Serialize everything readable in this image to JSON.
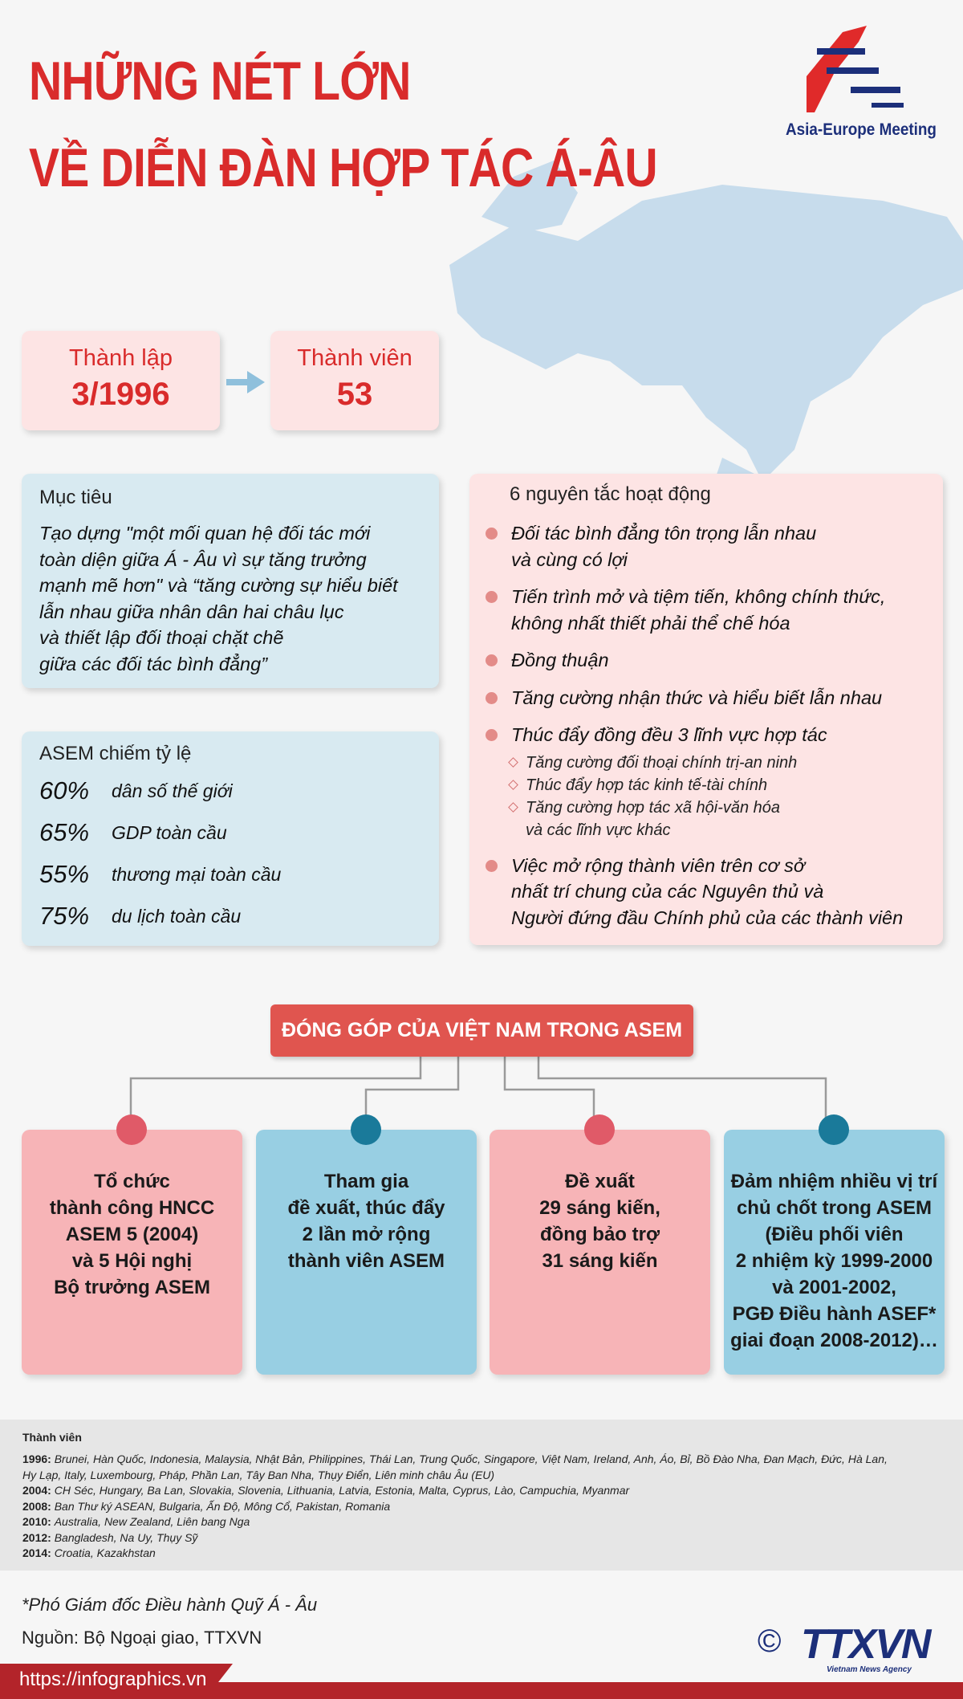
{
  "header": {
    "title_lines": [
      "NHỮNG NÉT LỚN",
      "VỀ DIỄN ĐÀN HỢP TÁC Á-ÂU"
    ],
    "logo_text": "Asia-Europe Meeting"
  },
  "founded": {
    "label": "Thành lập",
    "value": "3/1996"
  },
  "members": {
    "label": "Thành viên",
    "value": "53"
  },
  "objective": {
    "label": "Mục tiêu",
    "lines": [
      "Tạo dựng \"một mối quan hệ đối tác mới",
      "toàn diện giữa Á - Âu vì sự tăng trưởng",
      "mạnh mẽ hơn\" và “tăng cường sự hiểu biết",
      "lẫn nhau giữa nhân dân hai châu lục",
      "và thiết lập đối thoại chặt chẽ",
      "giữa các đối tác bình đẳng”"
    ]
  },
  "share": {
    "label": "ASEM chiếm tỷ lệ",
    "items": [
      {
        "percent": "60%",
        "text": "dân số thế giới"
      },
      {
        "percent": "65%",
        "text": "GDP toàn cầu"
      },
      {
        "percent": "55%",
        "text": "thương mại toàn cầu"
      },
      {
        "percent": "75%",
        "text": "du lịch toàn cầu"
      }
    ]
  },
  "principles": {
    "label": "6 nguyên tắc hoạt động",
    "items": [
      {
        "lines": [
          "Đối tác bình đẳng tôn trọng lẫn nhau",
          "và cùng có lợi"
        ]
      },
      {
        "lines": [
          "Tiến trình mở và tiệm tiến, không chính thức,",
          "không nhất thiết phải thể chế hóa"
        ]
      },
      {
        "lines": [
          "Đồng thuận"
        ]
      },
      {
        "lines": [
          "Tăng cường nhận thức và hiểu biết lẫn nhau"
        ]
      },
      {
        "lines": [
          "Thúc đẩy đồng đều 3 lĩnh vực hợp tác"
        ],
        "sub": [
          [
            "Tăng cường đối thoại chính trị-an ninh"
          ],
          [
            "Thúc đẩy hợp tác kinh tế-tài chính"
          ],
          [
            "Tăng cường hợp tác xã hội-văn hóa",
            "và các lĩnh vực khác"
          ]
        ]
      },
      {
        "lines": [
          "Việc mở rộng thành viên trên cơ sở",
          "nhất trí chung của các Nguyên thủ và",
          "Người đứng đầu Chính phủ của các thành viên"
        ]
      }
    ]
  },
  "contribution": {
    "title": "ĐÓNG GÓP CỦA VIỆT NAM TRONG ASEM",
    "cards": [
      {
        "lines": [
          "Tổ chức",
          "thành công HNCC",
          "ASEM 5 (2004)",
          "và 5 Hội nghị",
          "Bộ trưởng ASEM"
        ]
      },
      {
        "lines": [
          "Tham gia",
          "đề xuất, thúc đẩy",
          "2 lần mở rộng",
          "thành viên ASEM"
        ]
      },
      {
        "lines": [
          "Đề xuất",
          "29 sáng kiến,",
          "đồng bảo trợ",
          "31 sáng kiến"
        ]
      },
      {
        "lines": [
          "Đảm nhiệm nhiều vị trí",
          "chủ chốt trong ASEM",
          "(Điều phối viên",
          "2 nhiệm kỳ 1999-2000",
          "và 2001-2002,",
          "PGĐ Điều hành ASEF*",
          "giai đoạn 2008-2012)…"
        ]
      }
    ]
  },
  "member_list": {
    "title": "Thành viên",
    "rows": [
      {
        "year": "1996:",
        "names": "Brunei, Hàn Quốc, Indonesia, Malaysia, Nhật Bản, Philippines, Thái Lan, Trung Quốc, Singapore, Việt Nam, Ireland, Anh, Áo, Bỉ, Bồ Đào Nha, Đan Mạch, Đức, Hà Lan, Hy Lạp, Italy, Luxembourg, Pháp, Phần Lan, Tây Ban Nha, Thụy Điển, Liên minh châu Âu (EU)"
      },
      {
        "year": "2004:",
        "names": "CH Séc, Hungary, Ba Lan, Slovakia, Slovenia, Lithuania, Latvia, Estonia, Malta, Cyprus, Lào, Campuchia, Myanmar"
      },
      {
        "year": "2008:",
        "names": "Ban Thư ký ASEAN, Bulgaria, Ấn Độ, Mông Cổ, Pakistan, Romania"
      },
      {
        "year": "2010:",
        "names": "Australia, New Zealand, Liên bang Nga"
      },
      {
        "year": "2012:",
        "names": "Bangladesh, Na Uy, Thụy Sỹ"
      },
      {
        "year": "2014:",
        "names": "Croatia, Kazakhstan"
      }
    ]
  },
  "footer": {
    "note": "*Phó Giám đốc Điều hành Quỹ Á - Âu",
    "source": "Nguồn: Bộ Ngoại giao, TTXVN",
    "url": "https://infographics.vn",
    "copyright": "©",
    "agency": "TTXVN",
    "agency_sub": "Vietnam News Agency"
  }
}
